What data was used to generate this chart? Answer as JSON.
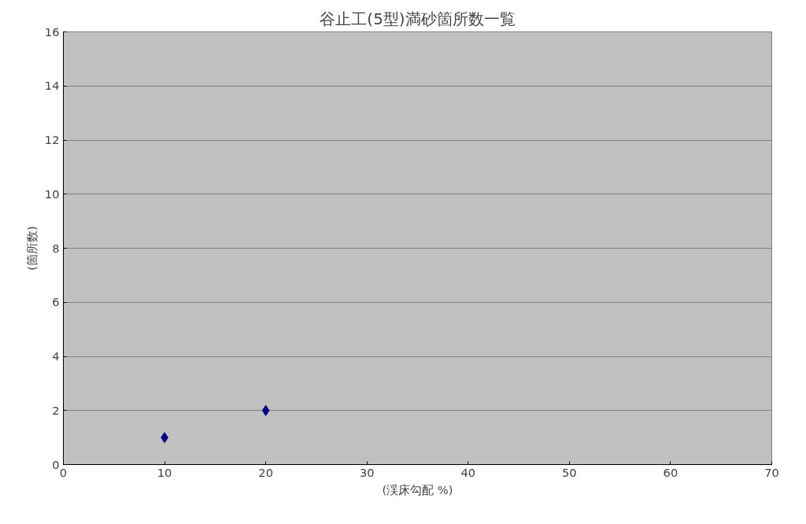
{
  "chart_data": {
    "type": "scatter",
    "title": "谷止工(5型)満砂箇所数一覧",
    "xlabel": "(渓床勾配 %)",
    "ylabel": "(箇所数)",
    "x": [
      10,
      20
    ],
    "series": [
      {
        "color": "#000080",
        "values": [
          1,
          2
        ]
      }
    ],
    "marker": "diamond",
    "grid": "y",
    "xlim": [
      0,
      70
    ],
    "xticks": [
      0,
      10,
      20,
      30,
      40,
      50,
      60,
      70
    ],
    "ylim": [
      0,
      16
    ],
    "yticks": [
      0,
      2,
      4,
      6,
      8,
      10,
      12,
      14,
      16
    ]
  }
}
